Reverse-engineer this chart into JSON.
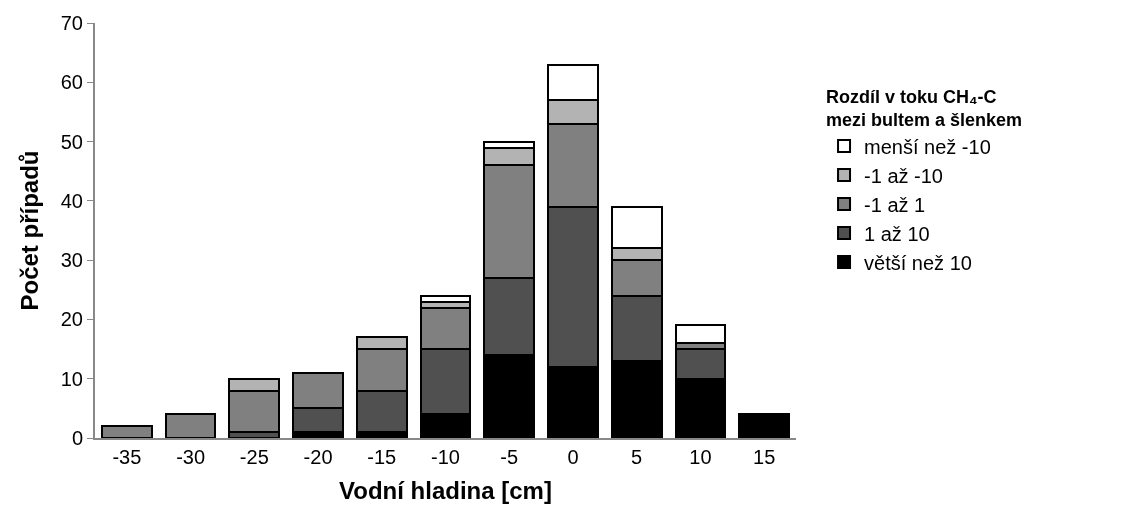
{
  "chart_data": {
    "type": "bar",
    "stacked": true,
    "xlabel": "Vodní hladina [cm]",
    "ylabel": "Počet případů",
    "legend_title": "Rozdíl v toku CH₄-C\nmezi bultem a šlenkem",
    "categories": [
      "-35",
      "-30",
      "-25",
      "-20",
      "-15",
      "-10",
      "-5",
      "0",
      "5",
      "10",
      "15"
    ],
    "ylim": [
      0,
      70
    ],
    "yticks": [
      0,
      10,
      20,
      30,
      40,
      50,
      60,
      70
    ],
    "legend": "right",
    "series": [
      {
        "name": "větší než 10",
        "color": "#000000",
        "values": [
          0,
          0,
          0,
          1,
          1,
          4,
          14,
          12,
          13,
          10,
          4
        ]
      },
      {
        "name": "1 až 10",
        "color": "#505050",
        "values": [
          0,
          0,
          1,
          4,
          7,
          11,
          13,
          27,
          11,
          5,
          0
        ]
      },
      {
        "name": "-1 až 1",
        "color": "#808080",
        "values": [
          2,
          4,
          7,
          6,
          7,
          7,
          19,
          14,
          6,
          1,
          0
        ]
      },
      {
        "name": "-1 až -10",
        "color": "#b3b3b3",
        "values": [
          0,
          0,
          2,
          0,
          2,
          1,
          3,
          4,
          2,
          0,
          0
        ]
      },
      {
        "name": "menší než -10",
        "color": "#ffffff",
        "values": [
          0,
          0,
          0,
          0,
          0,
          1,
          1,
          6,
          7,
          3,
          0
        ]
      }
    ]
  }
}
